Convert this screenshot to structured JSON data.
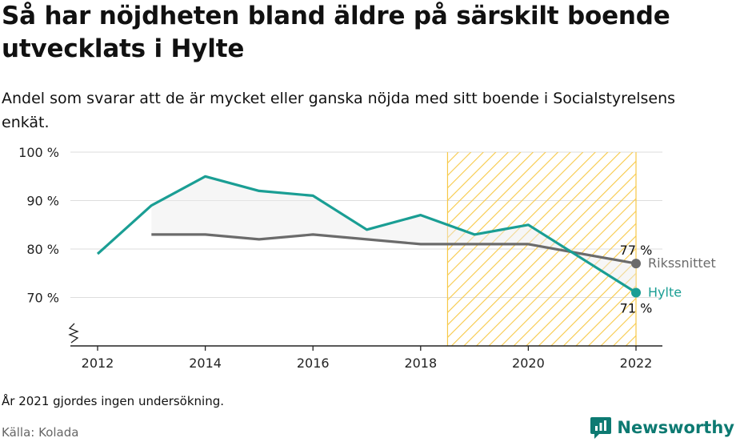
{
  "title": "Så har nöjdheten bland äldre på särskilt boende utvecklats i Hylte",
  "subtitle": "Andel som svarar att de är mycket eller ganska nöjda med sitt boende i Socialstyrelsens enkät.",
  "note": "År 2021 gjordes ingen undersökning.",
  "source": "Källa: Kolada",
  "brand": {
    "name": "Newsworthy",
    "icon": "newsworthy-logo-icon"
  },
  "colors": {
    "hylte": "#1a9e94",
    "riks": "#6b6b6b",
    "hatch": "#f7c948",
    "fill": "#ececec"
  },
  "chart_data": {
    "type": "line",
    "ylim": [
      60,
      100
    ],
    "xlim": [
      2012,
      2022
    ],
    "grid": true,
    "y_ticks": [
      {
        "value": 70,
        "label": "70 %"
      },
      {
        "value": 80,
        "label": "80 %"
      },
      {
        "value": 90,
        "label": "90 %"
      },
      {
        "value": 100,
        "label": "100 %"
      }
    ],
    "x_ticks": [
      {
        "value": 2012,
        "label": "2012"
      },
      {
        "value": 2014,
        "label": "2014"
      },
      {
        "value": 2016,
        "label": "2016"
      },
      {
        "value": 2018,
        "label": "2018"
      },
      {
        "value": 2020,
        "label": "2020"
      },
      {
        "value": 2022,
        "label": "2022"
      }
    ],
    "highlight_range": [
      2018.5,
      2022
    ],
    "series": [
      {
        "name": "Hylte",
        "key": "hylte",
        "x": [
          2012,
          2013,
          2014,
          2015,
          2016,
          2017,
          2018,
          2019,
          2020,
          2022
        ],
        "values": [
          79,
          89,
          95,
          92,
          91,
          84,
          87,
          83,
          85,
          71
        ],
        "end_label": "71 %"
      },
      {
        "name": "Rikssnittet",
        "key": "riks",
        "x": [
          2013,
          2014,
          2015,
          2016,
          2017,
          2018,
          2019,
          2020,
          2022
        ],
        "values": [
          83,
          83,
          82,
          83,
          82,
          81,
          81,
          81,
          77
        ],
        "end_label": "77 %"
      }
    ]
  }
}
